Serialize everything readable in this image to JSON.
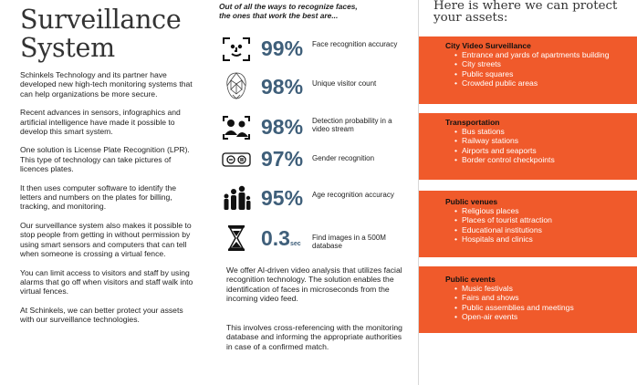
{
  "left": {
    "title_line1": "Surveillance",
    "title_line2": "System",
    "paragraphs": [
      "Schinkels Technology and its partner have developed new high-tech monitoring systems that can help organizations be more secure.",
      "Recent advances in sensors, infographics and artificial intelligence have made it possible to develop this smart system.",
      "One solution is License Plate Recognition (LPR). This type of technology can take pictures of licences plates.",
      "It then uses computer software to identify the letters and numbers on the plates for billing, tracking, and monitoring.",
      "Our surveillance system also makes it possible to stop people from getting in without permission by using smart sensors and computers that can tell when someone is crossing a virtual fence.",
      "You can limit access to visitors and staff by using alarms that go off when visitors and staff walk into virtual fences.",
      "At Schinkels, we can better protect your assets with our surveillance technologies."
    ]
  },
  "middle": {
    "heading_line1": "Out of all the ways to recognize faces,",
    "heading_line2": "the ones that work the best are...",
    "stats": [
      {
        "icon": "face-scan-icon",
        "value": "99%",
        "unit": "",
        "label": "Face recognition accuracy"
      },
      {
        "icon": "face-mesh-icon",
        "value": "98%",
        "unit": "",
        "label": "Unique visitor count"
      },
      {
        "icon": "people-detect-icon",
        "value": "98%",
        "unit": "",
        "label": "Detection probability in a video stream"
      },
      {
        "icon": "gender-icon",
        "value": "97%",
        "unit": "",
        "label": "Gender recognition"
      },
      {
        "icon": "age-group-icon",
        "value": "95%",
        "unit": "",
        "label": "Age recognition accuracy"
      },
      {
        "icon": "hourglass-icon",
        "value": "0.3",
        "unit": "sec",
        "label": "Find images in a 500M database"
      }
    ],
    "text1": "We offer AI-driven video analysis that utilizes facial recognition technology. The solution enables the identification of faces in microseconds from the incoming video feed.",
    "text2": "This involves cross-referencing with the monitoring database and informing the appropriate authorities in case of a confirmed match."
  },
  "right": {
    "heading_line1": "Here is where we can protect",
    "heading_line2": "your assets:",
    "accent_color": "#f05a2b",
    "boxes": [
      {
        "title": "City Video Surveillance",
        "items": [
          "Entrance and yards of apartments building",
          "City streets",
          "Public squares",
          "Crowded public areas"
        ]
      },
      {
        "title": "Transportation",
        "items": [
          "Bus stations",
          "Railway stations",
          "Airports and seaports",
          "Border control checkpoints"
        ]
      },
      {
        "title": "Public venues",
        "items": [
          "Religious places",
          "Places of tourist attraction",
          "Educational institutions",
          "Hospitals and clinics"
        ]
      },
      {
        "title": "Public events",
        "items": [
          "Music festivals",
          "Fairs and shows",
          "Public assemblies and meetings",
          "Open-air events"
        ]
      }
    ]
  }
}
